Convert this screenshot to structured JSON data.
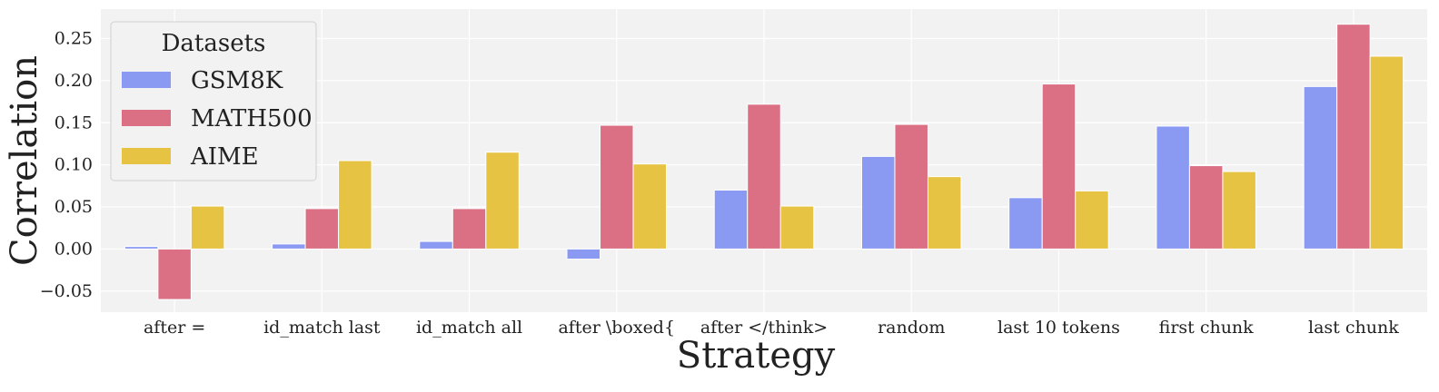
{
  "chart_data": {
    "type": "bar",
    "title": "",
    "xlabel": "Strategy",
    "ylabel": "Correlation",
    "ylim": [
      -0.075,
      0.285
    ],
    "yticks": [
      -0.05,
      0.0,
      0.05,
      0.1,
      0.15,
      0.2,
      0.25
    ],
    "ytick_labels": [
      "−0.05",
      "0.00",
      "0.05",
      "0.10",
      "0.15",
      "0.20",
      "0.25"
    ],
    "grid": true,
    "categories": [
      "after =",
      "id_match last",
      "id_match all",
      "after \\boxed{",
      "after </think>",
      "random",
      "last 10 tokens",
      "first chunk",
      "last chunk"
    ],
    "series": [
      {
        "name": "GSM8K",
        "color": "#8a9af2",
        "values": [
          0.003,
          0.006,
          0.009,
          -0.012,
          0.07,
          0.11,
          0.061,
          0.146,
          0.193
        ]
      },
      {
        "name": "MATH500",
        "color": "#db7085",
        "values": [
          -0.06,
          0.048,
          0.048,
          0.147,
          0.172,
          0.148,
          0.196,
          0.099,
          0.267
        ]
      },
      {
        "name": "AIME",
        "color": "#e6c342",
        "values": [
          0.051,
          0.105,
          0.115,
          0.101,
          0.051,
          0.086,
          0.069,
          0.092,
          0.229
        ]
      }
    ],
    "legend": {
      "title": "Datasets",
      "position": "top-left"
    }
  }
}
